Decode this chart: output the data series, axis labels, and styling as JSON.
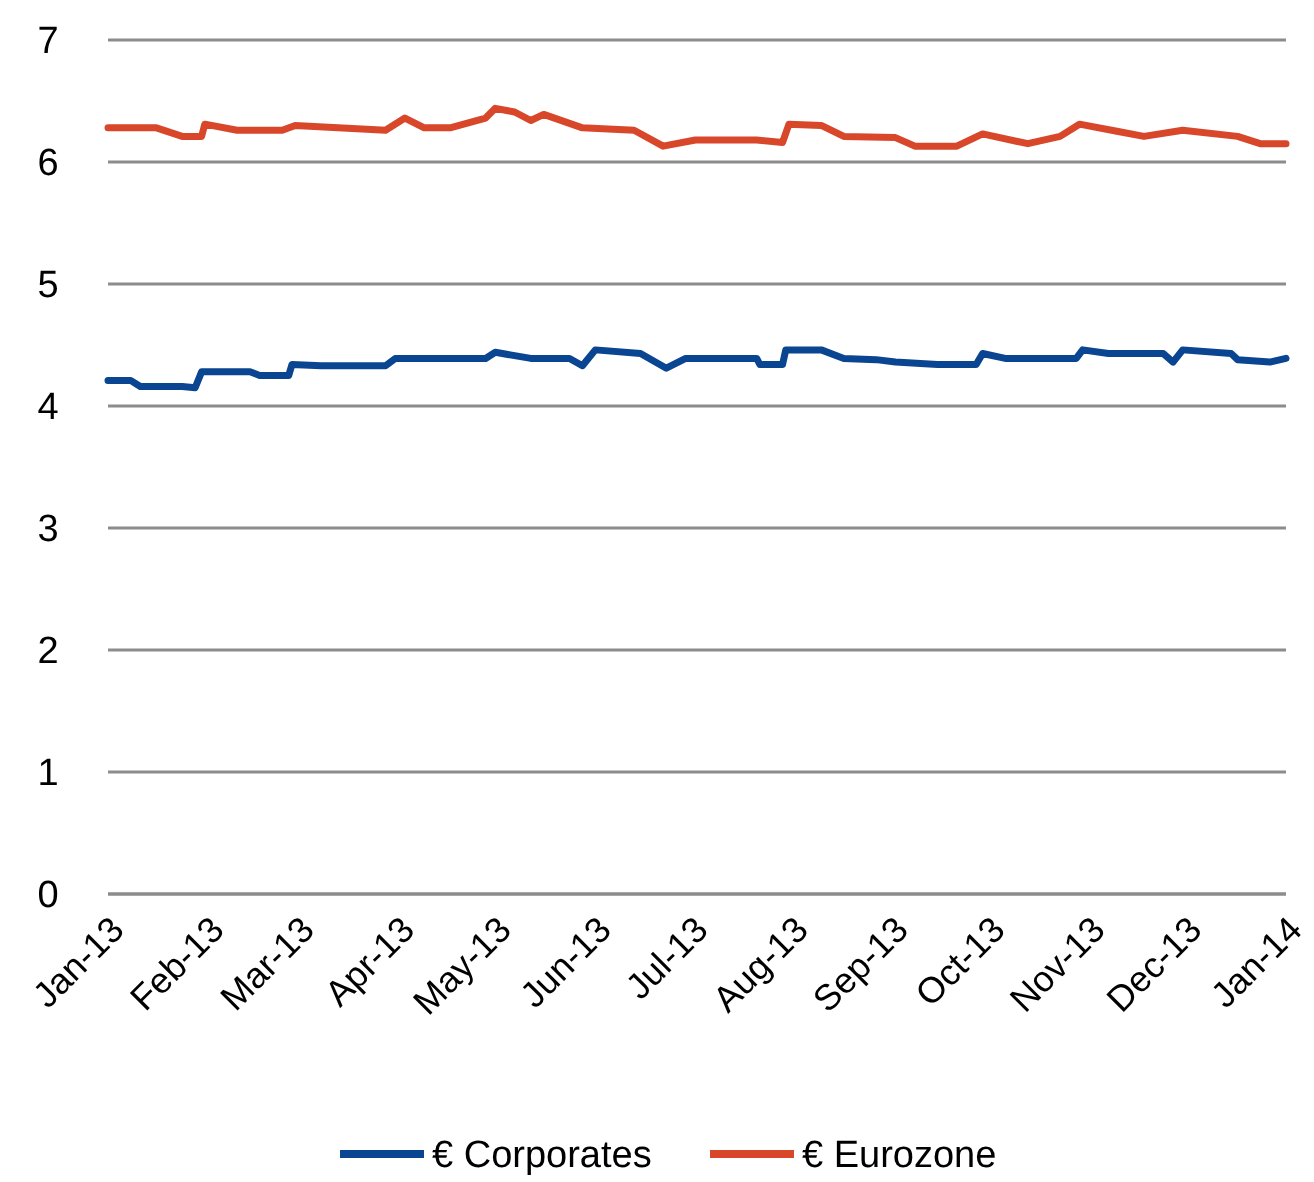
{
  "chart_data": {
    "type": "line",
    "xlim": [
      "2013-01-01",
      "2014-01-01"
    ],
    "xticks": [
      {
        "value": "2013-01-01",
        "label": "Jan-13"
      },
      {
        "value": "2013-02-01",
        "label": "Feb-13"
      },
      {
        "value": "2013-03-01",
        "label": "Mar-13"
      },
      {
        "value": "2013-04-01",
        "label": "Apr-13"
      },
      {
        "value": "2013-05-01",
        "label": "May-13"
      },
      {
        "value": "2013-06-01",
        "label": "Jun-13"
      },
      {
        "value": "2013-07-01",
        "label": "Jul-13"
      },
      {
        "value": "2013-08-01",
        "label": "Aug-13"
      },
      {
        "value": "2013-09-01",
        "label": "Sep-13"
      },
      {
        "value": "2013-10-01",
        "label": "Oct-13"
      },
      {
        "value": "2013-11-01",
        "label": "Nov-13"
      },
      {
        "value": "2013-12-01",
        "label": "Dec-13"
      },
      {
        "value": "2014-01-01",
        "label": "Jan-14"
      }
    ],
    "ylim": [
      0,
      7
    ],
    "yticks": [
      0,
      1,
      2,
      3,
      4,
      5,
      6,
      7
    ],
    "grid": "y",
    "legend": "bottom",
    "marker": "none",
    "line_style": "solid",
    "series": [
      {
        "name": "€ Corporates",
        "color": "#0a4592",
        "x": [
          "2013-01-01",
          "2013-01-08",
          "2013-01-11",
          "2013-01-24",
          "2013-01-28",
          "2013-01-30",
          "2013-02-14",
          "2013-02-17",
          "2013-02-26",
          "2013-02-27",
          "2013-03-08",
          "2013-03-28",
          "2013-03-31",
          "2013-04-28",
          "2013-05-01",
          "2013-05-12",
          "2013-05-24",
          "2013-05-28",
          "2013-06-01",
          "2013-06-15",
          "2013-06-23",
          "2013-06-29",
          "2013-07-21",
          "2013-07-22",
          "2013-07-29",
          "2013-07-30",
          "2013-08-10",
          "2013-08-17",
          "2013-08-27",
          "2013-09-02",
          "2013-09-15",
          "2013-09-27",
          "2013-09-29",
          "2013-10-06",
          "2013-10-28",
          "2013-10-30",
          "2013-11-07",
          "2013-11-24",
          "2013-11-27",
          "2013-11-30",
          "2013-12-15",
          "2013-12-17",
          "2013-12-27",
          "2014-01-01"
        ],
        "values": [
          4.21,
          4.21,
          4.16,
          4.16,
          4.15,
          4.28,
          4.28,
          4.25,
          4.25,
          4.34,
          4.33,
          4.33,
          4.39,
          4.39,
          4.44,
          4.39,
          4.39,
          4.33,
          4.46,
          4.43,
          4.31,
          4.39,
          4.39,
          4.34,
          4.34,
          4.46,
          4.46,
          4.39,
          4.38,
          4.36,
          4.34,
          4.34,
          4.43,
          4.39,
          4.39,
          4.46,
          4.43,
          4.43,
          4.36,
          4.46,
          4.43,
          4.38,
          4.36,
          4.39
        ]
      },
      {
        "name": "€ Eurozone",
        "color": "#d9472b",
        "x": [
          "2013-01-01",
          "2013-01-16",
          "2013-01-24",
          "2013-01-30",
          "2013-01-31",
          "2013-02-10",
          "2013-02-24",
          "2013-02-28",
          "2013-03-28",
          "2013-04-03",
          "2013-04-09",
          "2013-04-17",
          "2013-04-28",
          "2013-05-01",
          "2013-05-07",
          "2013-05-12",
          "2013-05-16",
          "2013-05-28",
          "2013-06-13",
          "2013-06-22",
          "2013-07-02",
          "2013-07-21",
          "2013-07-29",
          "2013-07-31",
          "2013-08-10",
          "2013-08-17",
          "2013-09-02",
          "2013-09-08",
          "2013-09-21",
          "2013-09-29",
          "2013-10-13",
          "2013-10-23",
          "2013-10-29",
          "2013-11-10",
          "2013-11-18",
          "2013-11-30",
          "2013-12-17",
          "2013-12-24",
          "2014-01-01"
        ],
        "values": [
          6.28,
          6.28,
          6.21,
          6.21,
          6.31,
          6.26,
          6.26,
          6.3,
          6.26,
          6.36,
          6.28,
          6.28,
          6.36,
          6.44,
          6.41,
          6.34,
          6.39,
          6.28,
          6.26,
          6.13,
          6.18,
          6.18,
          6.16,
          6.31,
          6.3,
          6.21,
          6.2,
          6.13,
          6.13,
          6.23,
          6.15,
          6.21,
          6.31,
          6.25,
          6.21,
          6.26,
          6.21,
          6.15,
          6.15
        ]
      }
    ]
  }
}
